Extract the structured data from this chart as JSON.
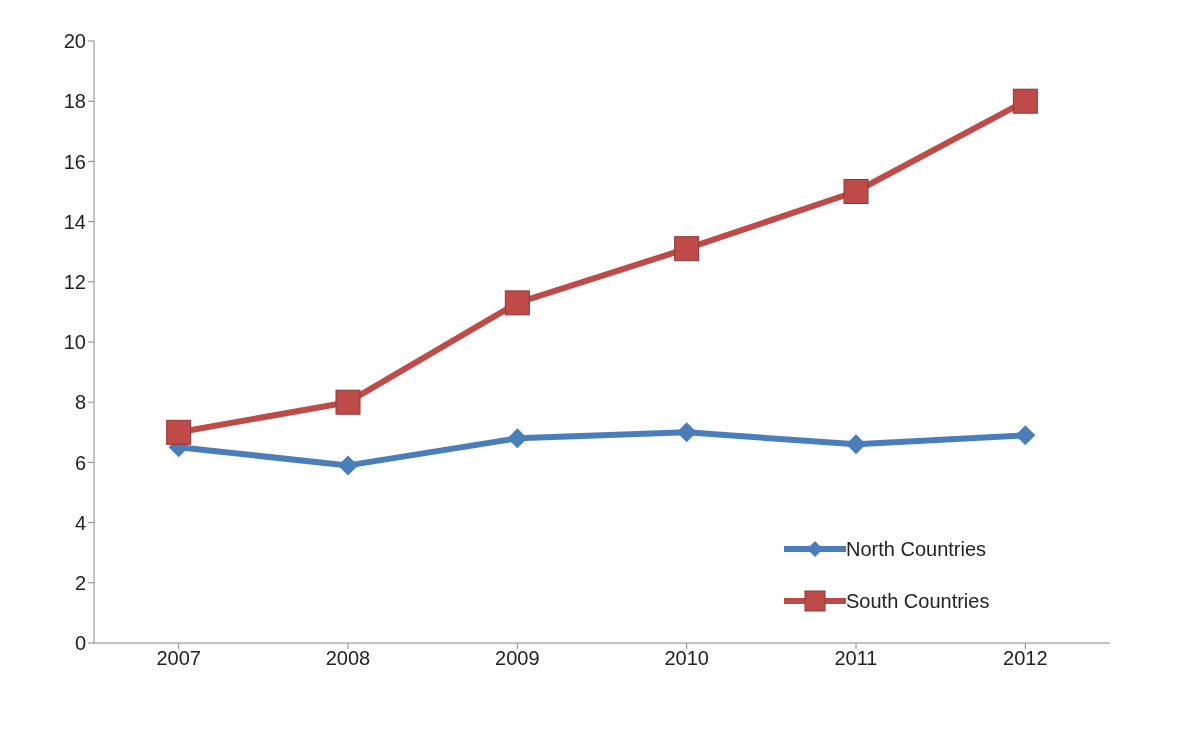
{
  "chart_data": {
    "type": "line",
    "categories": [
      "2007",
      "2008",
      "2009",
      "2010",
      "2011",
      "2012"
    ],
    "series": [
      {
        "name": "North Countries",
        "color": "#4a7ebb",
        "values": [
          6.5,
          5.9,
          6.8,
          7.0,
          6.6,
          6.9
        ],
        "marker": "diamond"
      },
      {
        "name": "South Countries",
        "color": "#be4b48",
        "values": [
          7.0,
          8.0,
          11.3,
          13.1,
          15.0,
          18.0
        ],
        "marker": "square"
      }
    ],
    "ylim": [
      0,
      20
    ],
    "yticks": [
      0,
      2,
      4,
      6,
      8,
      10,
      12,
      14,
      16,
      18,
      20
    ],
    "grid": false,
    "legend": "bottom right",
    "line_style": "solid"
  }
}
